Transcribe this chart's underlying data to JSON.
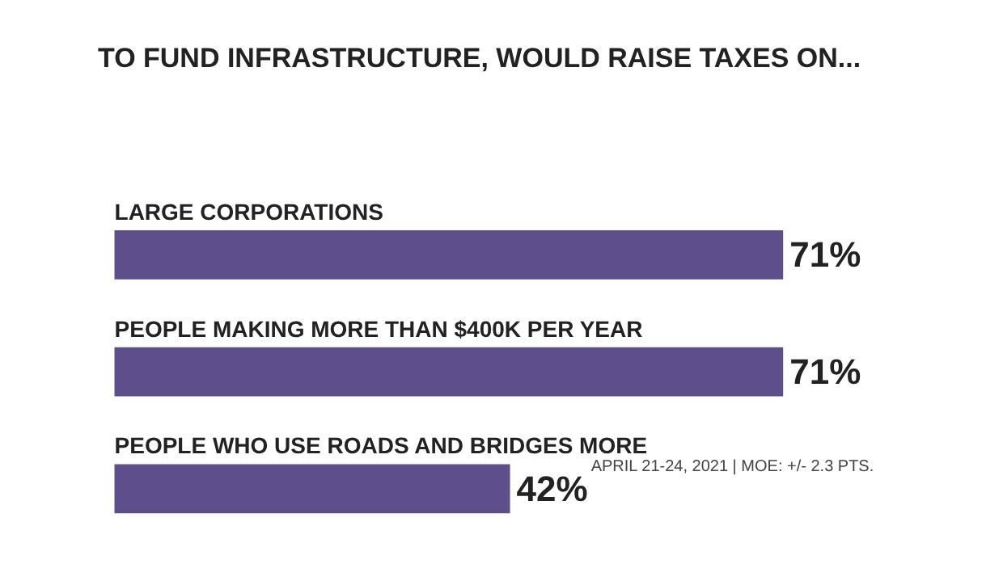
{
  "chart_data": {
    "type": "bar",
    "orientation": "horizontal",
    "title": "TO FUND INFRASTRUCTURE, WOULD RAISE TAXES ON...",
    "categories": [
      "LARGE CORPORATIONS",
      "PEOPLE MAKING MORE THAN $400K PER YEAR",
      "PEOPLE WHO USE ROADS AND BRIDGES MORE"
    ],
    "values": [
      71,
      71,
      42
    ],
    "value_labels": [
      "71%",
      "71%",
      "42%"
    ],
    "color": "#5e4e8c",
    "annotations": [
      "APRIL 21-24, 2021 | MOE: +/- 2.3 PTS."
    ]
  }
}
